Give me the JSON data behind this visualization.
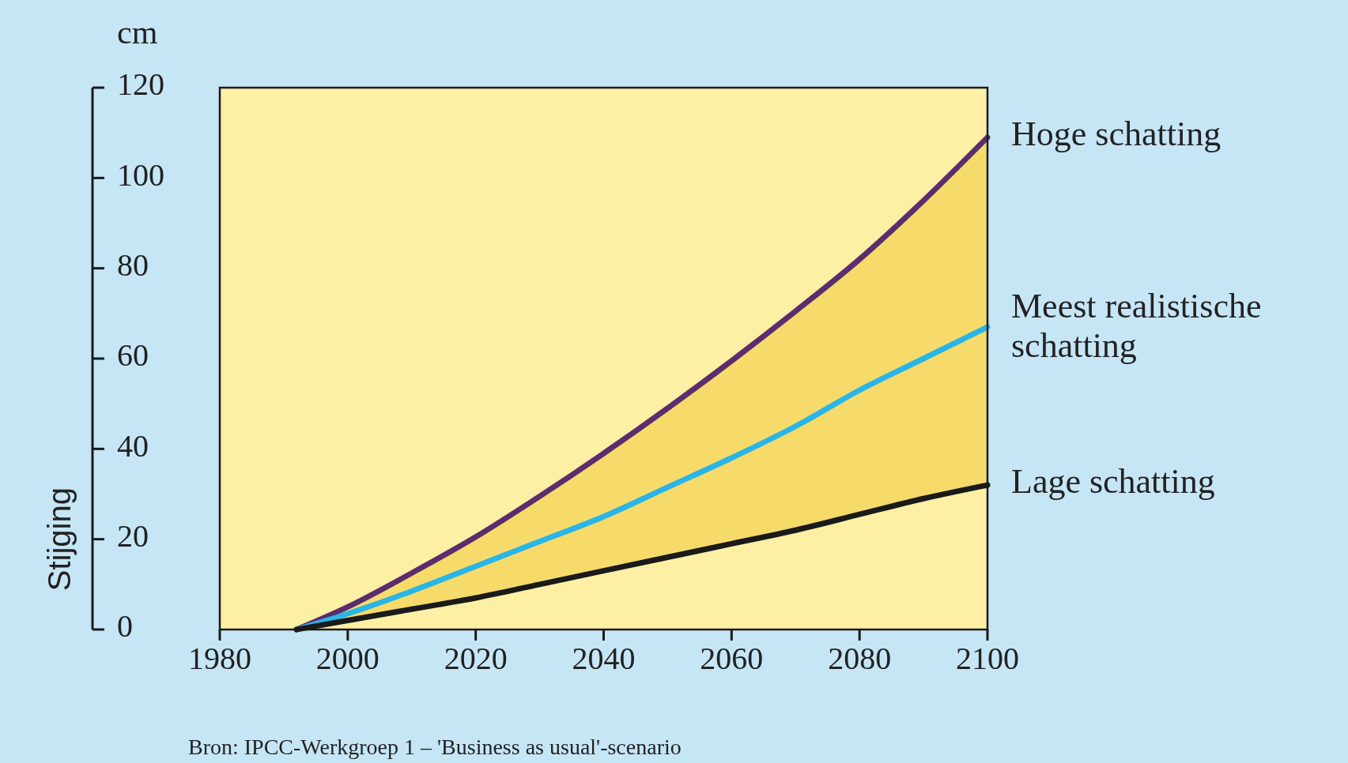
{
  "chart_data": {
    "type": "line",
    "ylabel": "Stijging",
    "xlim": [
      1980,
      2100
    ],
    "xticks": [
      1980,
      2000,
      2020,
      2040,
      2060,
      2080,
      2100
    ],
    "ylim": [
      0,
      120
    ],
    "yticks": [
      0,
      20,
      40,
      60,
      80,
      100,
      120
    ],
    "grid": false,
    "marker": "none",
    "line_style": "solid",
    "x": [
      1992,
      2000,
      2010,
      2020,
      2030,
      2040,
      2050,
      2060,
      2070,
      2080,
      2090,
      2100
    ],
    "series": [
      {
        "name": "Hoge schatting",
        "color": "#5b2d6e",
        "values": [
          0,
          5,
          12.5,
          20.5,
          29.5,
          39,
          49,
          59.5,
          70.5,
          82,
          95,
          109
        ]
      },
      {
        "name": "Meest realistische schatting",
        "color": "#29b5e8",
        "values": [
          0,
          3.5,
          8.5,
          14,
          19.5,
          25,
          31.5,
          38,
          45,
          53,
          60,
          67
        ],
        "lower": [
          0,
          2,
          4.5,
          7,
          10,
          13,
          16,
          19,
          22,
          25.5,
          29,
          32
        ],
        "upper": [
          0,
          5,
          12.5,
          20.5,
          29.5,
          39,
          49,
          59.5,
          70.5,
          82,
          95,
          109
        ]
      },
      {
        "name": "Lage schatting",
        "color": "#1a1a1a",
        "values": [
          0,
          2,
          4.5,
          7,
          10,
          13,
          16,
          19,
          22,
          25.5,
          29,
          32
        ]
      }
    ],
    "annotations": [
      "cm",
      "Bron: IPCC-Werkgroep 1 – 'Business as usual'-scenario"
    ]
  }
}
